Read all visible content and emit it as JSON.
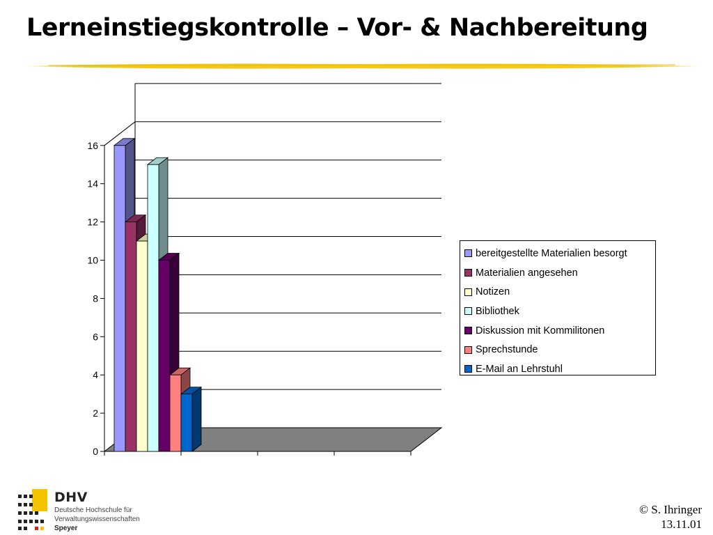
{
  "title": "Lerneinstiegskontrolle – Vor- & Nachbereitung",
  "legend_entries": [
    {
      "label": "bereitgestellte Materialien besorgt",
      "color": "#9999ff"
    },
    {
      "label": "Materialien angesehen",
      "color": "#993366"
    },
    {
      "label": "Notizen",
      "color": "#ffffcc"
    },
    {
      "label": "Bibliothek",
      "color": "#ccffff"
    },
    {
      "label": "Diskussion mit Kommilitonen",
      "color": "#660066"
    },
    {
      "label": "Sprechstunde",
      "color": "#ff8080"
    },
    {
      "label": "E-Mail an Lehrstuhl",
      "color": "#0066cc"
    }
  ],
  "logo": {
    "name": "DHV",
    "line1": "Deutsche Hochschule für",
    "line2": "Verwaltungswissenschaften",
    "line3": "Speyer"
  },
  "footer": {
    "author": "© S. Ihringer",
    "date": "13.11.01"
  },
  "chart_data": {
    "type": "bar",
    "variant": "3d-clustered",
    "categories": [
      "",
      "",
      "",
      ""
    ],
    "series": [
      {
        "name": "bereitgestellte Materialien besorgt",
        "values": [
          16,
          0,
          0,
          0
        ],
        "color": "#9999ff"
      },
      {
        "name": "Materialien angesehen",
        "values": [
          12,
          0,
          0,
          0
        ],
        "color": "#993366"
      },
      {
        "name": "Notizen",
        "values": [
          11,
          0,
          0,
          0
        ],
        "color": "#ffffcc"
      },
      {
        "name": "Bibliothek",
        "values": [
          15,
          0,
          0,
          0
        ],
        "color": "#ccffff"
      },
      {
        "name": "Diskussion mit Kommilitonen",
        "values": [
          10,
          0,
          0,
          0
        ],
        "color": "#660066"
      },
      {
        "name": "Sprechstunde",
        "values": [
          4,
          0,
          0,
          0
        ],
        "color": "#ff8080"
      },
      {
        "name": "E-Mail an Lehrstuhl",
        "values": [
          3,
          0,
          0,
          0
        ],
        "color": "#0066cc"
      }
    ],
    "ylim": [
      0,
      16
    ],
    "yticks": [
      0,
      2,
      4,
      6,
      8,
      10,
      12,
      14,
      16
    ],
    "grid": true,
    "legend_position": "right",
    "floor_color": "#808080"
  }
}
